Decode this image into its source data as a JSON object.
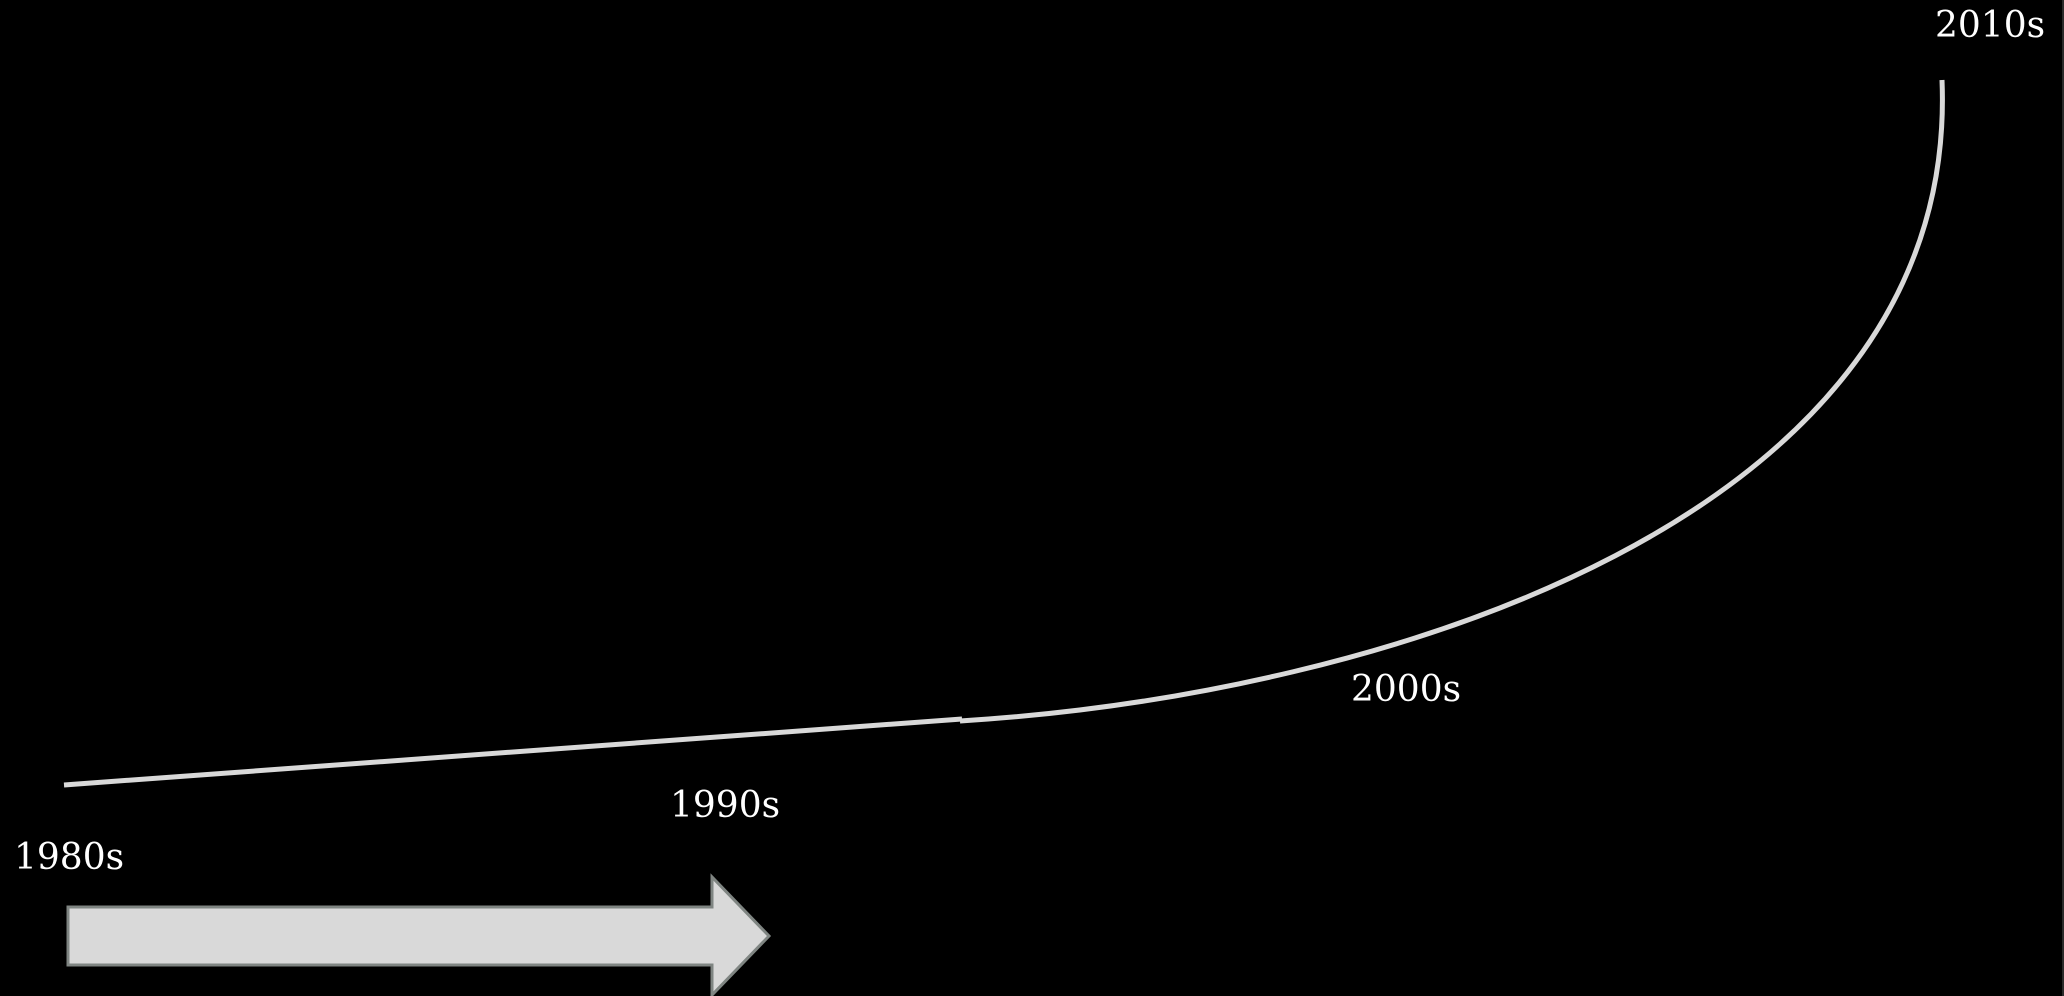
{
  "timeline": {
    "labels": [
      {
        "id": "1980s",
        "text": "1980s"
      },
      {
        "id": "1990s",
        "text": "1990s"
      },
      {
        "id": "2000s",
        "text": "2000s"
      },
      {
        "id": "2010s",
        "text": "2010s"
      }
    ]
  },
  "colors": {
    "background": "#000000",
    "curve": "#d9d9d9",
    "arrow_fill": "#d9d9d9",
    "arrow_stroke": "#7f8582",
    "text": "#ffffff"
  }
}
